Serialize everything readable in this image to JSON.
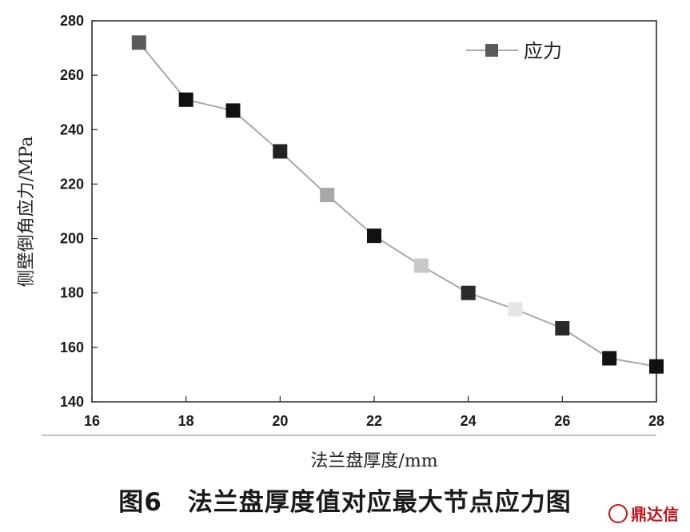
{
  "chart_data": {
    "type": "line",
    "xlabel": "法兰盘厚度/mm",
    "ylabel": "侧壁倒角应力/MPa",
    "xlim": [
      16,
      28
    ],
    "ylim": [
      140,
      280
    ],
    "x_ticks": [
      16,
      18,
      20,
      22,
      24,
      26,
      28
    ],
    "y_ticks": [
      140,
      160,
      180,
      200,
      220,
      240,
      260,
      280
    ],
    "grid": false,
    "legend_position": "top-right",
    "series": [
      {
        "name": "应力",
        "color": "#a8a8a8",
        "marker": "square",
        "x": [
          17,
          18,
          19,
          20,
          21,
          22,
          23,
          24,
          25,
          26,
          27,
          28
        ],
        "y": [
          272,
          251,
          247,
          232,
          216,
          201,
          190,
          180,
          174,
          167,
          156,
          153
        ],
        "marker_colors": [
          "#5a5a5a",
          "#111111",
          "#111111",
          "#222222",
          "#a8a8a8",
          "#111111",
          "#c8c8c8",
          "#2a2a2a",
          "#e6e6e6",
          "#2a2a2a",
          "#111111",
          "#111111"
        ]
      }
    ]
  },
  "caption": "图6　法兰盘厚度值对应最大节点应力图",
  "watermark": {
    "logo_text": "鼎",
    "text": "鼎达信"
  }
}
